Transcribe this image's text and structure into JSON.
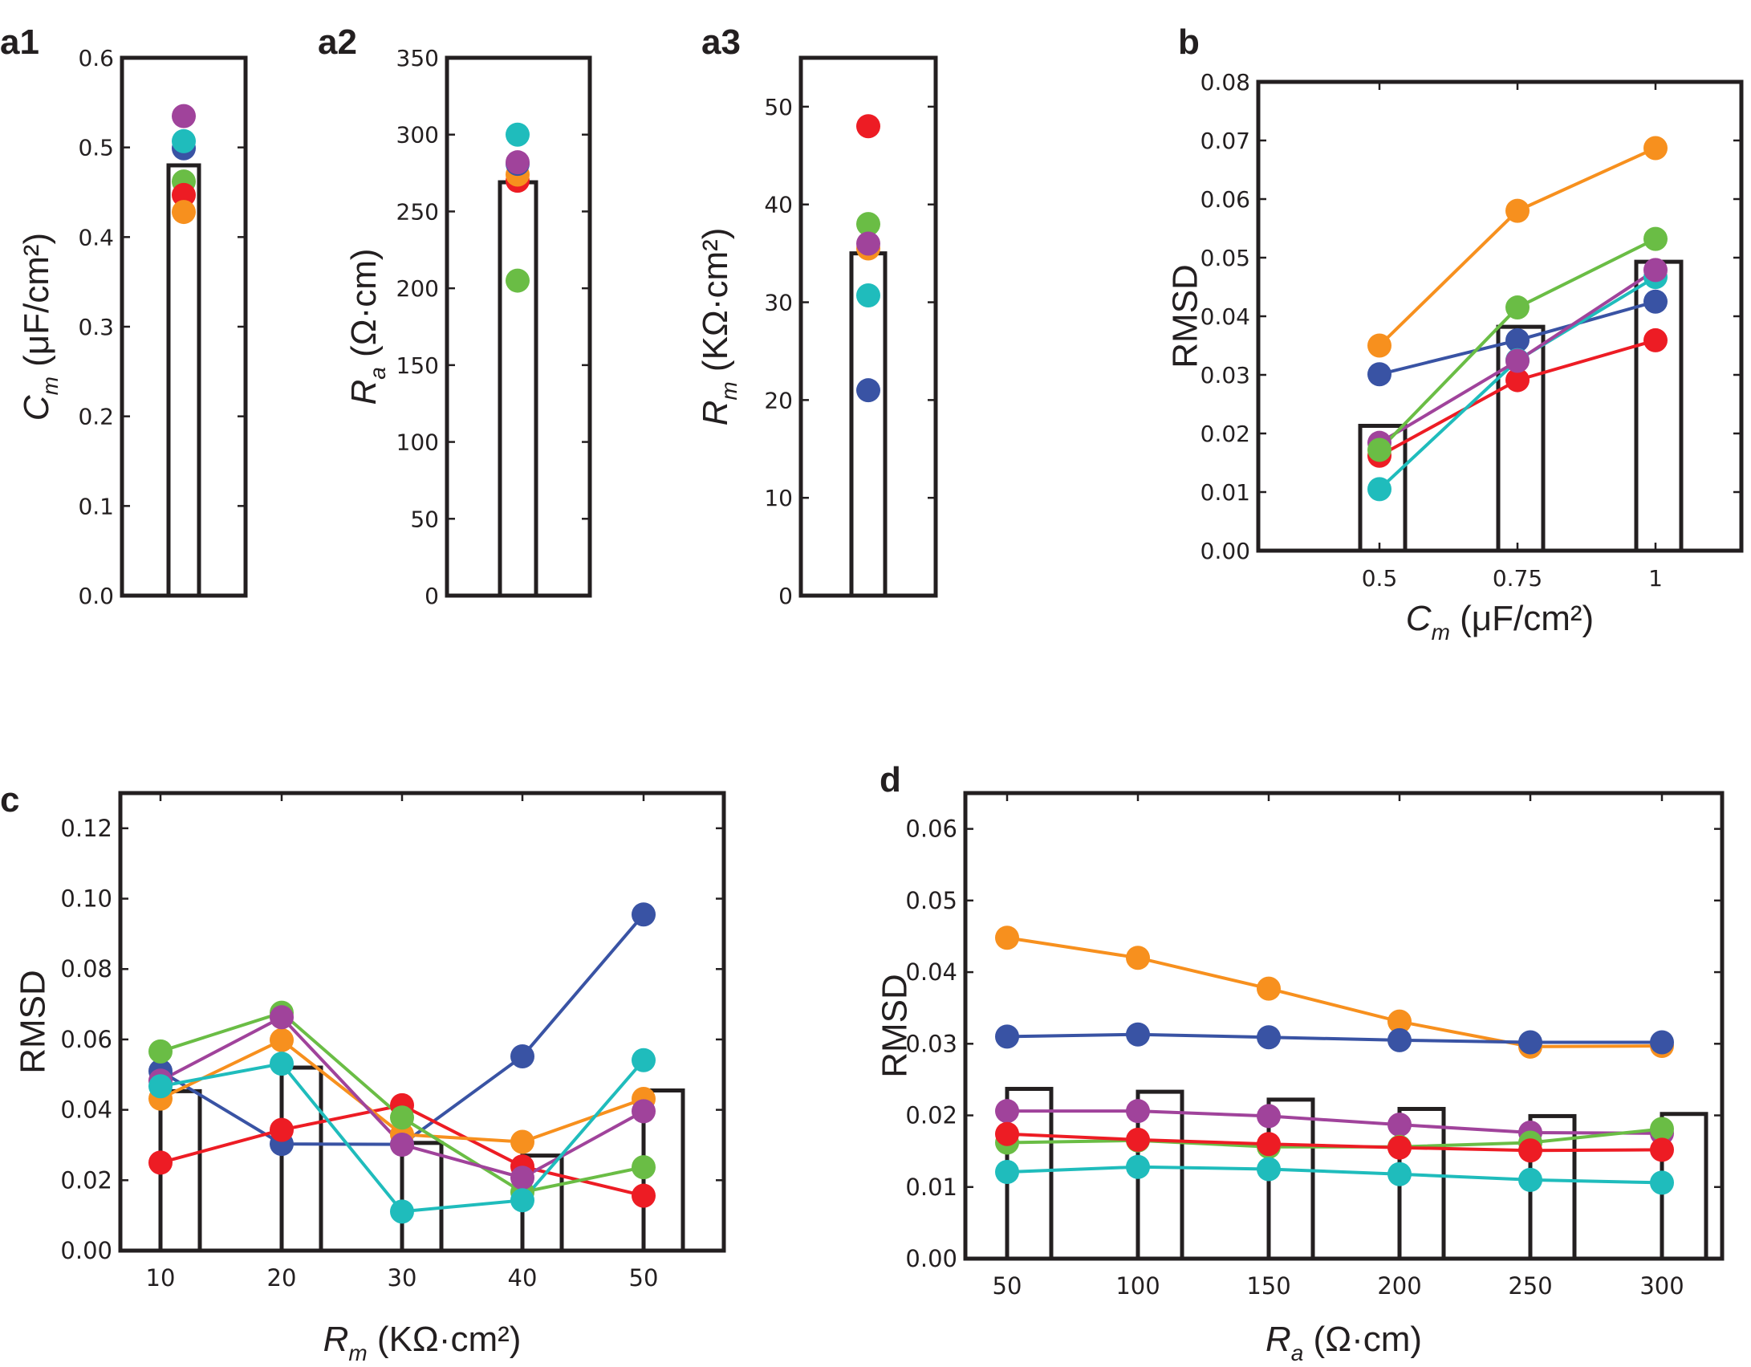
{
  "colors": {
    "blue": "#3953a4",
    "orange": "#f7901e",
    "green": "#6abd45",
    "red": "#ed1c24",
    "cyan": "#1fbcbc",
    "purple": "#a0439b",
    "axis": "#231f20"
  },
  "chart_data": [
    {
      "id": "a1",
      "panel_label": "a1",
      "type": "bar",
      "title": "",
      "ylabel_main": "C",
      "ylabel_sub": "m",
      "ylabel_unit": " (μF/cm²)",
      "xlabel": "",
      "ylim": [
        0,
        0.6
      ],
      "yticks": [
        0.0,
        0.1,
        0.2,
        0.3,
        0.4,
        0.5,
        0.6
      ],
      "ytick_labels": [
        "0.0",
        "0.1",
        "0.2",
        "0.3",
        "0.4",
        "0.5",
        "0.6"
      ],
      "bar_value": 0.48,
      "points": [
        {
          "series": "purple",
          "value": 0.535
        },
        {
          "series": "blue",
          "value": 0.499
        },
        {
          "series": "cyan",
          "value": 0.507
        },
        {
          "series": "green",
          "value": 0.462
        },
        {
          "series": "red",
          "value": 0.447
        },
        {
          "series": "orange",
          "value": 0.428
        }
      ]
    },
    {
      "id": "a2",
      "panel_label": "a2",
      "type": "bar",
      "title": "",
      "ylabel_main": "R",
      "ylabel_sub": "a",
      "ylabel_unit": " (Ω·cm)",
      "xlabel": "",
      "ylim": [
        0,
        350
      ],
      "yticks": [
        0,
        50,
        100,
        150,
        200,
        250,
        300,
        350
      ],
      "ytick_labels": [
        "0",
        "50",
        "100",
        "150",
        "200",
        "250",
        "300",
        "350"
      ],
      "bar_value": 269,
      "points": [
        {
          "series": "cyan",
          "value": 300
        },
        {
          "series": "red",
          "value": 270
        },
        {
          "series": "orange",
          "value": 274
        },
        {
          "series": "blue",
          "value": 281
        },
        {
          "series": "purple",
          "value": 282
        },
        {
          "series": "green",
          "value": 205
        }
      ]
    },
    {
      "id": "a3",
      "panel_label": "a3",
      "type": "bar",
      "title": "",
      "ylabel_main": "R",
      "ylabel_sub": "m",
      "ylabel_unit": " (KΩ·cm²)",
      "xlabel": "",
      "ylim": [
        0,
        55
      ],
      "yticks": [
        0,
        10,
        20,
        30,
        40,
        50
      ],
      "ytick_labels": [
        "0",
        "10",
        "20",
        "30",
        "40",
        "50"
      ],
      "bar_value": 35,
      "points": [
        {
          "series": "red",
          "value": 48
        },
        {
          "series": "green",
          "value": 38
        },
        {
          "series": "orange",
          "value": 35.5
        },
        {
          "series": "purple",
          "value": 36
        },
        {
          "series": "cyan",
          "value": 30.7
        },
        {
          "series": "blue",
          "value": 21
        }
      ]
    },
    {
      "id": "b",
      "panel_label": "b",
      "type": "line",
      "title": "",
      "ylabel": "RMSD",
      "xlabel_main": "C",
      "xlabel_sub": "m",
      "xlabel_unit": " (μF/cm²)",
      "ylim": [
        0,
        0.08
      ],
      "yticks": [
        0,
        0.01,
        0.02,
        0.03,
        0.04,
        0.05,
        0.06,
        0.07,
        0.08
      ],
      "ytick_labels": [
        "0.00",
        "0.01",
        "0.02",
        "0.03",
        "0.04",
        "0.05",
        "0.06",
        "0.07",
        "0.08"
      ],
      "categories": [
        "0.5",
        "0.75",
        "1"
      ],
      "bar_values": [
        0.0213,
        0.0382,
        0.0493
      ],
      "series": [
        {
          "name": "orange",
          "values": [
            0.035,
            0.058,
            0.0687
          ]
        },
        {
          "name": "blue",
          "values": [
            0.0301,
            0.0359,
            0.0425
          ]
        },
        {
          "name": "red",
          "values": [
            0.0162,
            0.0291,
            0.0359
          ]
        },
        {
          "name": "cyan",
          "values": [
            0.0105,
            0.0325,
            0.0467
          ]
        },
        {
          "name": "purple",
          "values": [
            0.0184,
            0.0324,
            0.0479
          ]
        },
        {
          "name": "green",
          "values": [
            0.0172,
            0.0415,
            0.0532
          ]
        }
      ]
    },
    {
      "id": "c",
      "panel_label": "c",
      "type": "line",
      "title": "",
      "ylabel": "RMSD",
      "xlabel_main": "R",
      "xlabel_sub": "m",
      "xlabel_unit": " (KΩ·cm²)",
      "ylim": [
        0,
        0.13
      ],
      "yticks": [
        0,
        0.02,
        0.04,
        0.06,
        0.08,
        0.1,
        0.12
      ],
      "ytick_labels": [
        "0.00",
        "0.02",
        "0.04",
        "0.06",
        "0.08",
        "0.10",
        "0.12"
      ],
      "categories": [
        "10",
        "20",
        "30",
        "40",
        "50"
      ],
      "bar_values": [
        0.0453,
        0.052,
        0.0306,
        0.027,
        0.0455
      ],
      "series": [
        {
          "name": "blue",
          "values": [
            0.051,
            0.0303,
            0.0302,
            0.0552,
            0.0955
          ]
        },
        {
          "name": "red",
          "values": [
            0.025,
            0.0343,
            0.0413,
            0.0239,
            0.0156
          ]
        },
        {
          "name": "orange",
          "values": [
            0.0432,
            0.0598,
            0.033,
            0.0309,
            0.0431
          ]
        },
        {
          "name": "green",
          "values": [
            0.0566,
            0.0676,
            0.0378,
            0.0166,
            0.0237
          ]
        },
        {
          "name": "purple",
          "values": [
            0.0483,
            0.0663,
            0.0301,
            0.0207,
            0.0396
          ]
        },
        {
          "name": "cyan",
          "values": [
            0.0467,
            0.0531,
            0.0111,
            0.0143,
            0.0541
          ]
        }
      ]
    },
    {
      "id": "d",
      "panel_label": "d",
      "type": "line",
      "title": "",
      "ylabel": "RMSD",
      "xlabel_main": "R",
      "xlabel_sub": "a",
      "xlabel_unit": " (Ω·cm)",
      "ylim": [
        0,
        0.065
      ],
      "yticks": [
        0,
        0.01,
        0.02,
        0.03,
        0.04,
        0.05,
        0.06
      ],
      "ytick_labels": [
        "0.00",
        "0.01",
        "0.02",
        "0.03",
        "0.04",
        "0.05",
        "0.06"
      ],
      "categories": [
        "50",
        "100",
        "150",
        "200",
        "250",
        "300"
      ],
      "bar_values": [
        0.0237,
        0.0233,
        0.0222,
        0.0209,
        0.0199,
        0.0202
      ],
      "series": [
        {
          "name": "orange",
          "values": [
            0.0448,
            0.042,
            0.0377,
            0.0331,
            0.0296,
            0.0297
          ]
        },
        {
          "name": "blue",
          "values": [
            0.031,
            0.0313,
            0.0309,
            0.0305,
            0.0302,
            0.0302
          ]
        },
        {
          "name": "purple",
          "values": [
            0.0206,
            0.0206,
            0.0199,
            0.0187,
            0.0176,
            0.0175
          ]
        },
        {
          "name": "green",
          "values": [
            0.0162,
            0.0165,
            0.0156,
            0.0156,
            0.0162,
            0.0181
          ]
        },
        {
          "name": "red",
          "values": [
            0.0174,
            0.0166,
            0.016,
            0.0155,
            0.0151,
            0.0152
          ]
        },
        {
          "name": "cyan",
          "values": [
            0.0121,
            0.0128,
            0.0125,
            0.0118,
            0.011,
            0.0106
          ]
        }
      ]
    }
  ]
}
